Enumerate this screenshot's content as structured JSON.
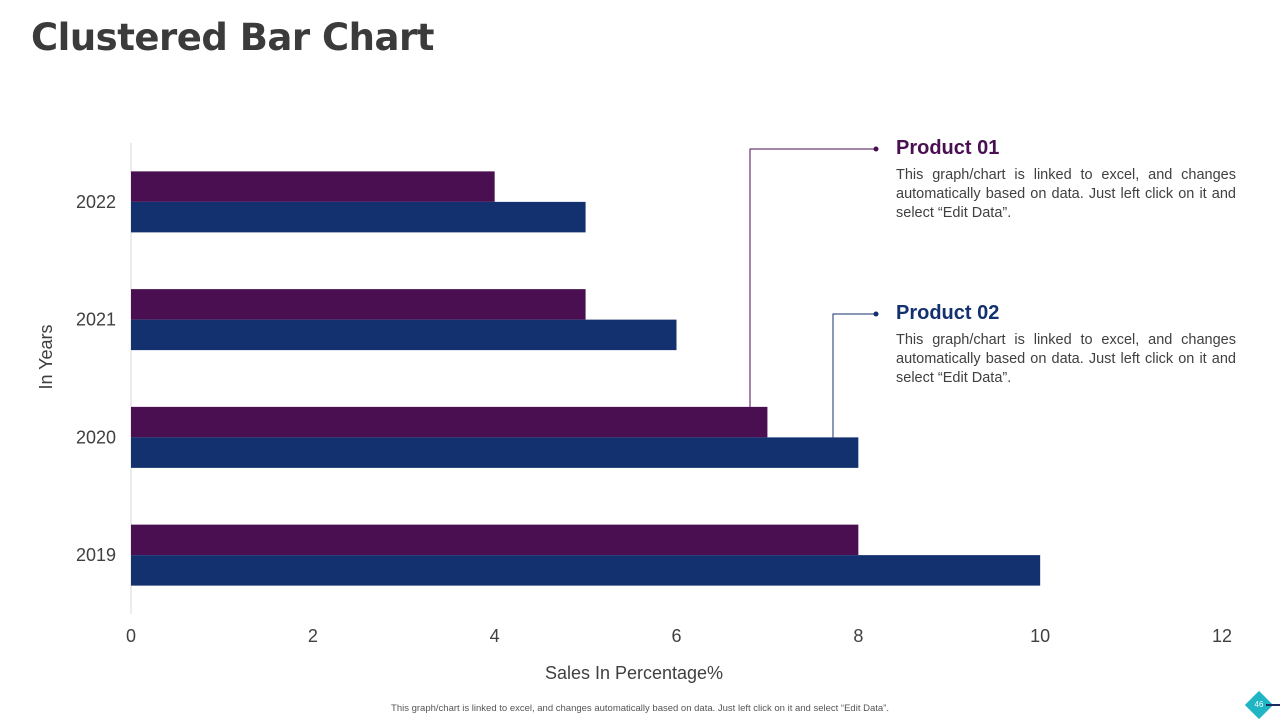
{
  "page": {
    "title": "Clustered Bar Chart",
    "footer_note": "This graph/chart is linked to excel, and changes automatically based on data. Just left click on it and select “Edit Data”.",
    "page_number": "46"
  },
  "colors": {
    "product01": "#4a0f50",
    "product02": "#13306f",
    "badge": "#1fb5c4"
  },
  "legend": [
    {
      "name": "Product 01",
      "description": "This graph/chart is linked to excel, and changes automatically based on data. Just left click on it and select “Edit Data”."
    },
    {
      "name": "Product 02",
      "description": "This graph/chart is linked to excel, and changes automatically based on data. Just left click on it and select “Edit Data”."
    }
  ],
  "chart_data": {
    "type": "bar",
    "orientation": "horizontal",
    "title": "",
    "categories": [
      "2019",
      "2020",
      "2021",
      "2022"
    ],
    "series": [
      {
        "name": "Product 01",
        "values": [
          8,
          7,
          5,
          4
        ]
      },
      {
        "name": "Product 02",
        "values": [
          10,
          8,
          6,
          5
        ]
      }
    ],
    "xlabel": "Sales In Percentage%",
    "ylabel": "In Years",
    "xlim": [
      0,
      12
    ],
    "xticks": [
      0,
      2,
      4,
      6,
      8,
      10,
      12
    ],
    "grid": false,
    "legend_position": "right"
  }
}
